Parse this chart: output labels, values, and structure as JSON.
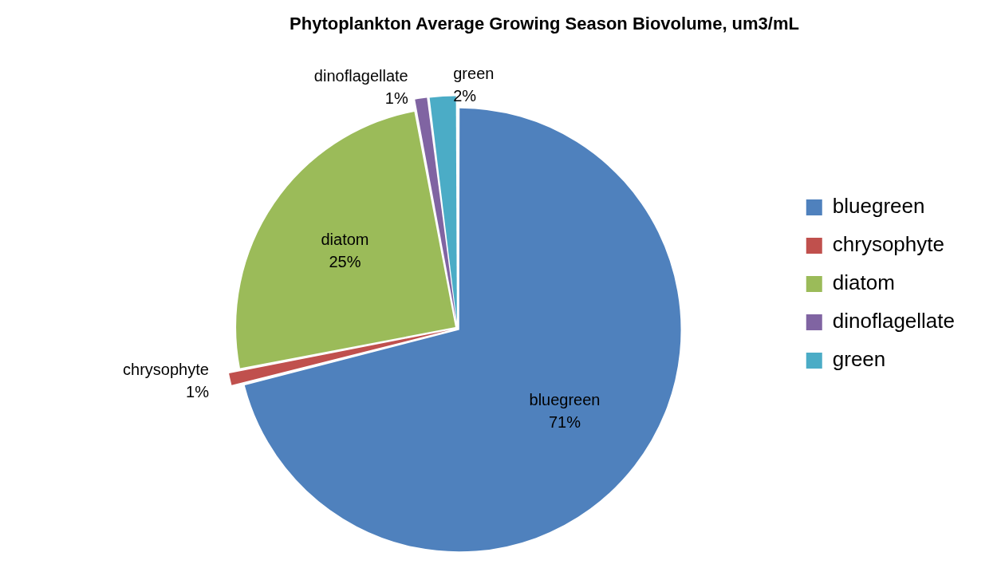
{
  "chart_data": {
    "type": "pie",
    "title": "Phytoplankton Average Growing Season Biovolume, um3/mL",
    "categories": [
      "bluegreen",
      "chrysophyte",
      "diatom",
      "dinoflagellate",
      "green"
    ],
    "values": [
      71,
      1,
      25,
      1,
      2
    ],
    "colors": [
      "#4f81bd",
      "#c0504d",
      "#9bbb59",
      "#8064a2",
      "#4bacc6"
    ],
    "value_labels": [
      "71%",
      "1%",
      "25%",
      "1%",
      "2%"
    ],
    "legend": "right"
  }
}
